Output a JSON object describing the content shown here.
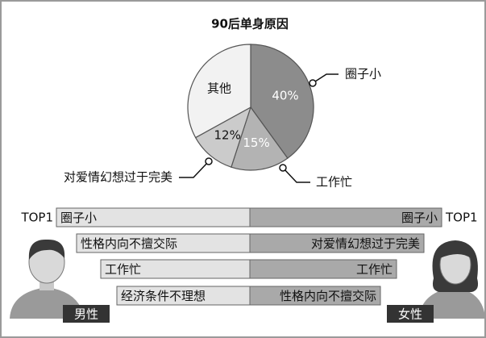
{
  "chart_data": {
    "type": "pie",
    "title": "90后单身原因",
    "categories": [
      "圈子小",
      "工作忙",
      "对爱情幻想过于完美",
      "其他"
    ],
    "values": [
      40,
      15,
      12,
      33
    ],
    "value_labels": [
      "40%",
      "15%",
      "12%",
      null
    ],
    "colors": [
      "#8c8c8c",
      "#b3b3b3",
      "#cbcbcb",
      "#f2f2f2"
    ]
  },
  "ranking": {
    "top_label": "TOP1",
    "male_label": "男性",
    "female_label": "女性",
    "rows": [
      {
        "male": "圈子小",
        "female": "圈子小"
      },
      {
        "male": "性格内向不擅交际",
        "female": "对爱情幻想过于完美"
      },
      {
        "male": "工作忙",
        "female": "工作忙"
      },
      {
        "male": "经济条件不理想",
        "female": "性格内向不擅交际"
      }
    ]
  }
}
